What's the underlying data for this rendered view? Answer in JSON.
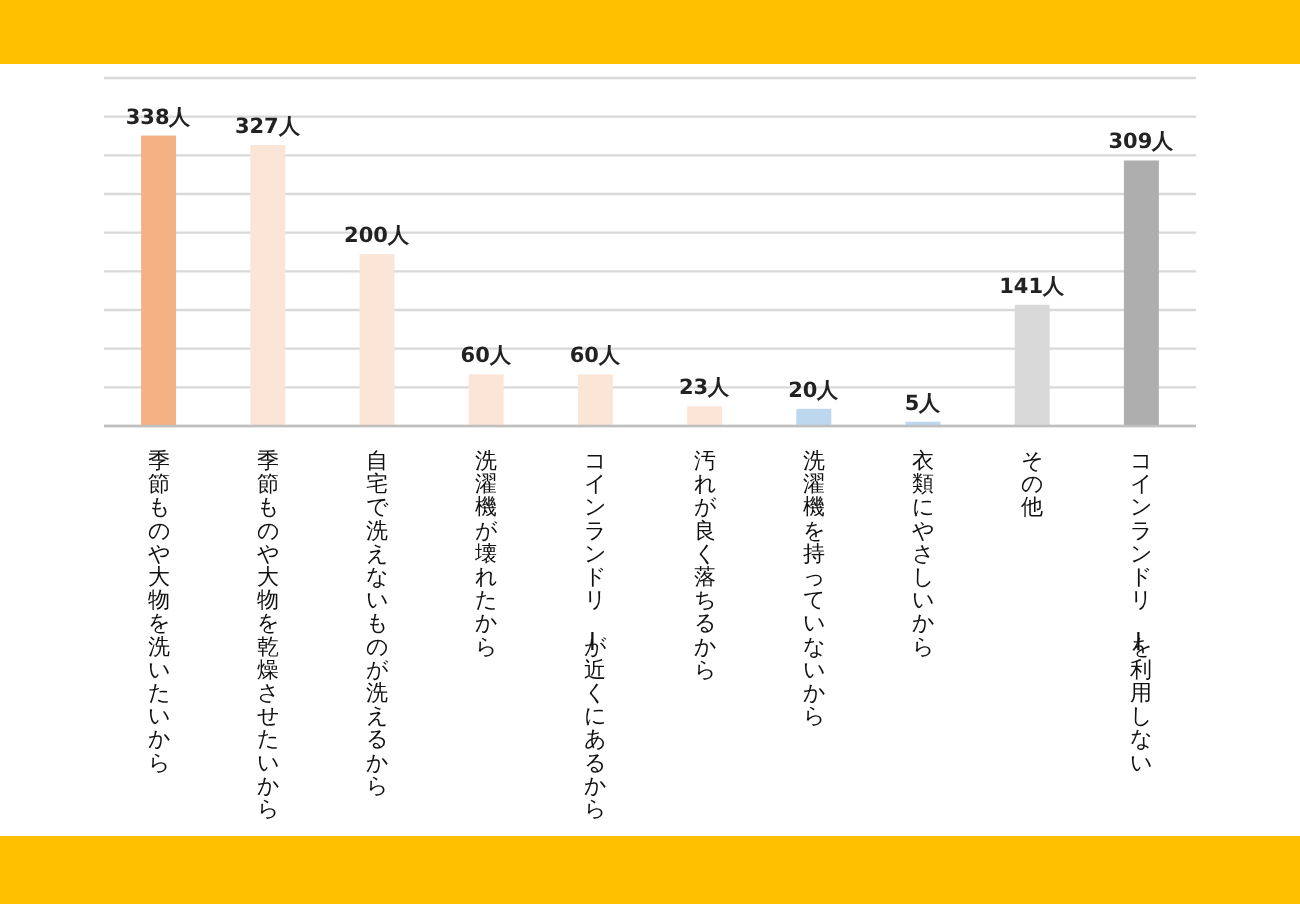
{
  "chart_data": {
    "type": "bar",
    "categories": [
      "季節ものや大物を洗いたいから",
      "季節ものや大物を乾燥させたいから",
      "自宅で洗えないものが洗えるから",
      "洗濯機が壊れたから",
      "コインランドリーが近くにあるから",
      "汚れが良く落ちるから",
      "洗濯機を持っていないから",
      "衣類にやさしいから",
      "その他",
      "コインランドリーを利用しない"
    ],
    "values": [
      338,
      327,
      200,
      60,
      60,
      23,
      20,
      5,
      141,
      309
    ],
    "value_labels": [
      "338人",
      "327人",
      "200人",
      "60人",
      "60人",
      "23人",
      "20人",
      "5人",
      "141人",
      "309人"
    ],
    "colors": [
      "#f4b183",
      "#fbe5d6",
      "#fbe5d6",
      "#fbe5d6",
      "#fbe5d6",
      "#fbe5d6",
      "#bdd7ee",
      "#bdd7ee",
      "#d9d9d9",
      "#aeaeae"
    ],
    "ylim": [
      0,
      405
    ],
    "yticks": [
      {
        "value": 0,
        "label": null
      },
      {
        "value": 45,
        "label": null
      },
      {
        "value": 90,
        "label": null
      },
      {
        "value": 135,
        "label": null
      },
      {
        "value": 180,
        "label": null
      },
      {
        "value": 225,
        "label": null
      },
      {
        "value": 270,
        "label": null
      },
      {
        "value": 315,
        "label": null
      },
      {
        "value": 360,
        "label": null
      },
      {
        "value": 405,
        "label": null
      }
    ],
    "grid": "y",
    "tick_labels": "x"
  }
}
